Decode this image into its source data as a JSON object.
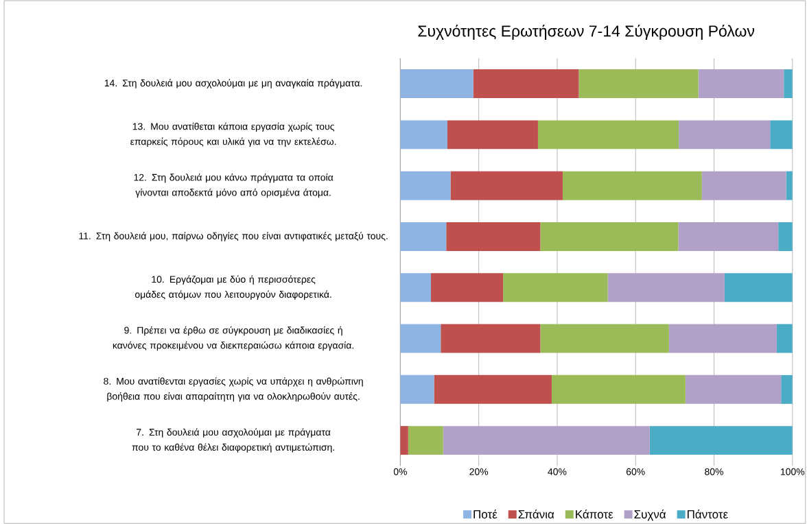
{
  "chart_data": {
    "type": "bar",
    "orientation": "horizontal",
    "stacked": true,
    "title": "Συχνότητες Ερωτήσεων 7-14  Σύγκρουση Ρόλων",
    "categories": [
      "14. Στη δουλειά μου ασχολούμαι με μη αναγκαία πράγματα.",
      "13. Μου ανατίθεται κάποια εργασία χωρίς τους επαρκείς πόρους και υλικά για να την εκτελέσω.",
      "12. Στη δουλειά μου κάνω πράγματα τα οποία γίνονται αποδεκτά μόνο από ορισμένα άτομα.",
      "11. Στη δουλειά μου, παίρνω οδηγίες που είναι αντιφατικές μεταξύ τους.",
      "10. Εργάζομαι με δύο ή περισσότερες ομάδες ατόμων που λειτουργούν διαφορετικά.",
      "9. Πρέπει να έρθω σε σύγκρουση με διαδικασίες ή κανόνες προκειμένου να διεκπεραιώσω κάποια εργασία.",
      "8. Μου ανατίθενται εργασίες χωρίς να υπάρχει η ανθρώπινη βοήθεια που είναι απαραίτητη για να ολοκληρωθούν αυτές.",
      "7. Στη δουλειά μου ασχολούμαι με πράγματα που το καθένα θέλει διαφορετική αντιμετώπιση."
    ],
    "series": [
      {
        "name": "Ποτέ",
        "color": "#8eb4e3",
        "values": [
          18.6,
          12.0,
          12.8,
          11.7,
          7.8,
          10.3,
          8.6,
          0
        ]
      },
      {
        "name": "Σπάνια",
        "color": "#c0504d",
        "values": [
          26.9,
          23.1,
          28.6,
          24.0,
          18.4,
          25.4,
          30.0,
          2.0
        ]
      },
      {
        "name": "Κάποτε",
        "color": "#9bbb59",
        "values": [
          30.5,
          35.9,
          35.5,
          35.2,
          26.7,
          32.8,
          34.1,
          8.9
        ]
      },
      {
        "name": "Συχνά",
        "color": "#b1a0c7",
        "values": [
          21.8,
          23.3,
          21.5,
          25.5,
          29.8,
          27.5,
          24.4,
          52.7
        ]
      },
      {
        "name": "Πάντοτε",
        "color": "#4bacc6",
        "values": [
          2.2,
          5.7,
          1.6,
          3.6,
          17.3,
          4.0,
          2.9,
          36.4
        ]
      }
    ],
    "xlim": [
      0,
      100
    ],
    "xticks": [
      {
        "value": 0,
        "label": "0%"
      },
      {
        "value": 20,
        "label": "20%"
      },
      {
        "value": 40,
        "label": "40%"
      },
      {
        "value": 60,
        "label": "60%"
      },
      {
        "value": 80,
        "label": "80%"
      },
      {
        "value": 100,
        "label": "100%"
      }
    ],
    "grid": "x",
    "legend": "bottom"
  }
}
